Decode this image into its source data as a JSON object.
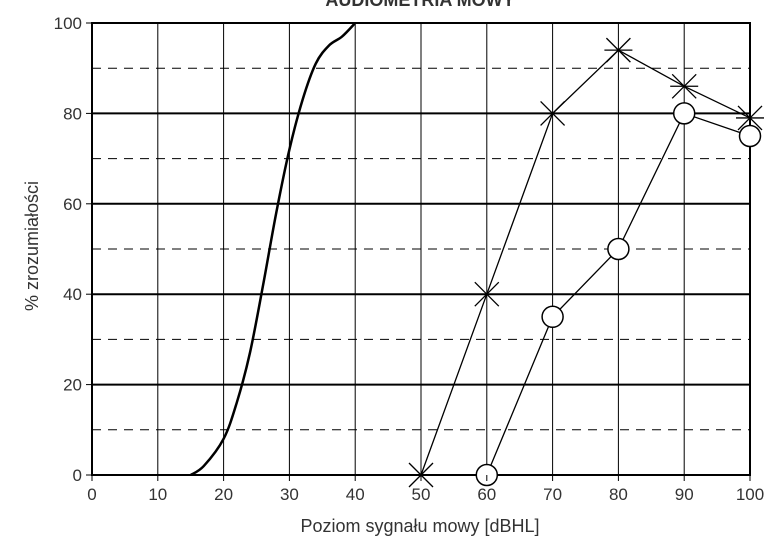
{
  "chart_data": {
    "type": "line",
    "title": "AUDIOMETRIA MOWY",
    "xlabel": "Poziom sygnału mowy [dBHL]",
    "ylabel": "% zrozumiałości",
    "xlim": [
      0,
      100
    ],
    "ylim": [
      0,
      100
    ],
    "x_ticks": [
      "0",
      "10",
      "20",
      "30",
      "40",
      "50",
      "60",
      "70",
      "80",
      "90",
      "100"
    ],
    "y_ticks": [
      "0",
      "20",
      "40",
      "60",
      "80",
      "100"
    ],
    "grid": {
      "vertical": "solid, every 10",
      "horizontal_major": "solid, every 20",
      "horizontal_minor": "dashed, at 10, 30, 50, 70, 90"
    },
    "series": [
      {
        "marker": "none",
        "style": "smooth",
        "x": [
          15,
          17,
          20,
          22,
          24,
          26,
          28,
          30,
          32,
          34,
          36,
          38,
          40
        ],
        "y": [
          0,
          2,
          8,
          16,
          27,
          42,
          58,
          72,
          83,
          91,
          95,
          97,
          100
        ]
      },
      {
        "marker": "x",
        "x": [
          50,
          60,
          70,
          80,
          90,
          100
        ],
        "y": [
          0,
          40,
          80,
          94,
          86,
          79
        ]
      },
      {
        "marker": "o",
        "x": [
          60,
          70,
          80,
          90,
          100
        ],
        "y": [
          0,
          35,
          50,
          80,
          75
        ]
      }
    ]
  }
}
